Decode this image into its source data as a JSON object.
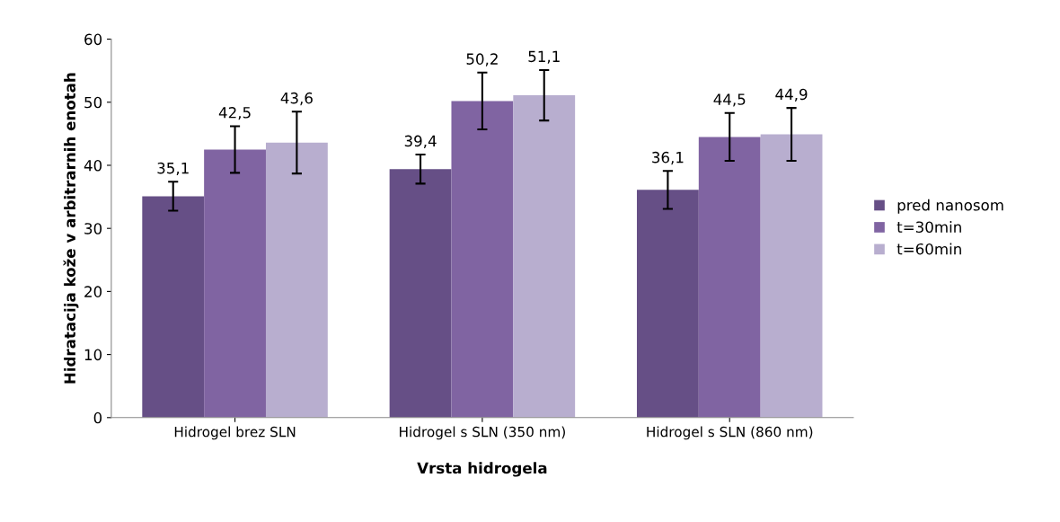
{
  "chart_data": {
    "type": "bar",
    "xlabel": "Vrsta hidrogela",
    "ylabel": "Hidratacija kože v arbitrarnih enotah",
    "categories": [
      "Hidrogel brez SLN",
      "Hidrogel s SLN (350 nm)",
      "Hidrogel s SLN (860 nm)"
    ],
    "series": [
      {
        "name": "pred nanosom",
        "color": "#664f86",
        "values": [
          35.1,
          39.4,
          36.1
        ],
        "value_labels": [
          "35,1",
          "39,4",
          "36,1"
        ],
        "errors": [
          2.3,
          2.3,
          3.0
        ]
      },
      {
        "name": "t=30min",
        "color": "#8064a2",
        "values": [
          42.5,
          50.2,
          44.5
        ],
        "value_labels": [
          "42,5",
          "50,2",
          "44,5"
        ],
        "errors": [
          3.7,
          4.5,
          3.8
        ]
      },
      {
        "name": "t=60min",
        "color": "#b8aecf",
        "values": [
          43.6,
          51.1,
          44.9
        ],
        "value_labels": [
          "43,6",
          "51,1",
          "44,9"
        ],
        "errors": [
          4.9,
          4.0,
          4.2
        ]
      }
    ],
    "ylim": [
      0,
      60
    ],
    "yticks": [
      0,
      10,
      20,
      30,
      40,
      50,
      60
    ],
    "grid": false,
    "legend": "right"
  }
}
